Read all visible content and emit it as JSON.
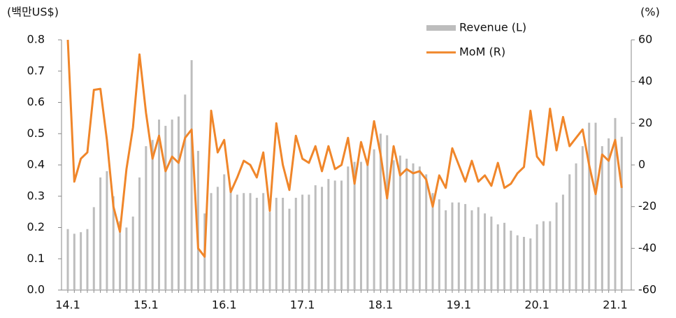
{
  "chart_data": {
    "type": "bar-line",
    "y_label": "(백만US$)",
    "y2_label": "(%)",
    "categories": [
      "14.1",
      null,
      null,
      null,
      null,
      null,
      null,
      null,
      null,
      null,
      null,
      null,
      "15.1",
      null,
      null,
      null,
      null,
      null,
      null,
      null,
      null,
      null,
      null,
      null,
      "16.1",
      null,
      null,
      null,
      null,
      null,
      null,
      null,
      null,
      null,
      null,
      null,
      "17.1",
      null,
      null,
      null,
      null,
      null,
      null,
      null,
      null,
      null,
      null,
      null,
      "18.1",
      null,
      null,
      null,
      null,
      null,
      null,
      null,
      null,
      null,
      null,
      null,
      "19.1",
      null,
      null,
      null,
      null,
      null,
      null,
      null,
      null,
      null,
      null,
      null,
      "20.1",
      null,
      null,
      null,
      null,
      null,
      null,
      null,
      null,
      null,
      null,
      null,
      "21.1",
      null
    ],
    "series": [
      {
        "name": "Revenue (L)",
        "type": "bar",
        "color": "#bdbdbd",
        "values": [
          0.195,
          0.18,
          0.185,
          0.195,
          0.265,
          0.36,
          0.38,
          0.3,
          0.22,
          0.2,
          0.235,
          0.36,
          0.46,
          0.48,
          0.545,
          0.525,
          0.545,
          0.555,
          0.625,
          0.735,
          0.445,
          0.245,
          0.31,
          0.33,
          0.37,
          0.32,
          0.305,
          0.31,
          0.31,
          0.295,
          0.31,
          0.25,
          0.295,
          0.295,
          0.26,
          0.295,
          0.305,
          0.305,
          0.335,
          0.33,
          0.355,
          0.35,
          0.35,
          0.395,
          0.41,
          0.41,
          0.4,
          0.45,
          0.5,
          0.495,
          0.415,
          0.43,
          0.42,
          0.405,
          0.395,
          0.37,
          0.31,
          0.29,
          0.255,
          0.28,
          0.28,
          0.275,
          0.255,
          0.265,
          0.245,
          0.235,
          0.21,
          0.215,
          0.19,
          0.175,
          0.17,
          0.165,
          0.21,
          0.22,
          0.22,
          0.28,
          0.305,
          0.37,
          0.405,
          0.46,
          0.535,
          0.535,
          0.46,
          0.485,
          0.55,
          0.49
        ]
      },
      {
        "name": "MoM (R)",
        "type": "line",
        "axis": "y2",
        "color": "#f0862a",
        "values": [
          60,
          -8,
          3,
          6,
          36,
          36.5,
          12,
          -20,
          -32,
          -2,
          18,
          53,
          25,
          3,
          14,
          -3,
          4,
          1,
          13,
          17,
          -40,
          -44,
          26,
          6,
          12,
          -13,
          -6,
          2,
          0,
          -6,
          6,
          -22,
          20,
          0,
          -12,
          14,
          3,
          1,
          9,
          -3,
          9,
          -2,
          0,
          13,
          -9,
          11,
          0,
          21,
          5,
          -16,
          9,
          -5,
          -2,
          -4,
          -3,
          -7,
          -20,
          -5,
          -11,
          8,
          0,
          -8,
          2,
          -8,
          -5,
          -10,
          1,
          -11,
          -9,
          -4,
          -1,
          26,
          4,
          0,
          27,
          7,
          23,
          9,
          13,
          17,
          0,
          -14,
          5,
          2,
          12,
          -11
        ]
      }
    ],
    "ylim": [
      0,
      0.8
    ],
    "yticks": [
      {
        "value": 0,
        "label": "0.0"
      },
      0.1,
      0.2,
      0.3,
      0.4,
      0.5,
      0.6,
      0.7,
      0.8
    ],
    "y2lim": [
      -60,
      60
    ],
    "y2ticks": [
      -60,
      -40,
      -20,
      0,
      20,
      40,
      60
    ],
    "grid": false
  }
}
